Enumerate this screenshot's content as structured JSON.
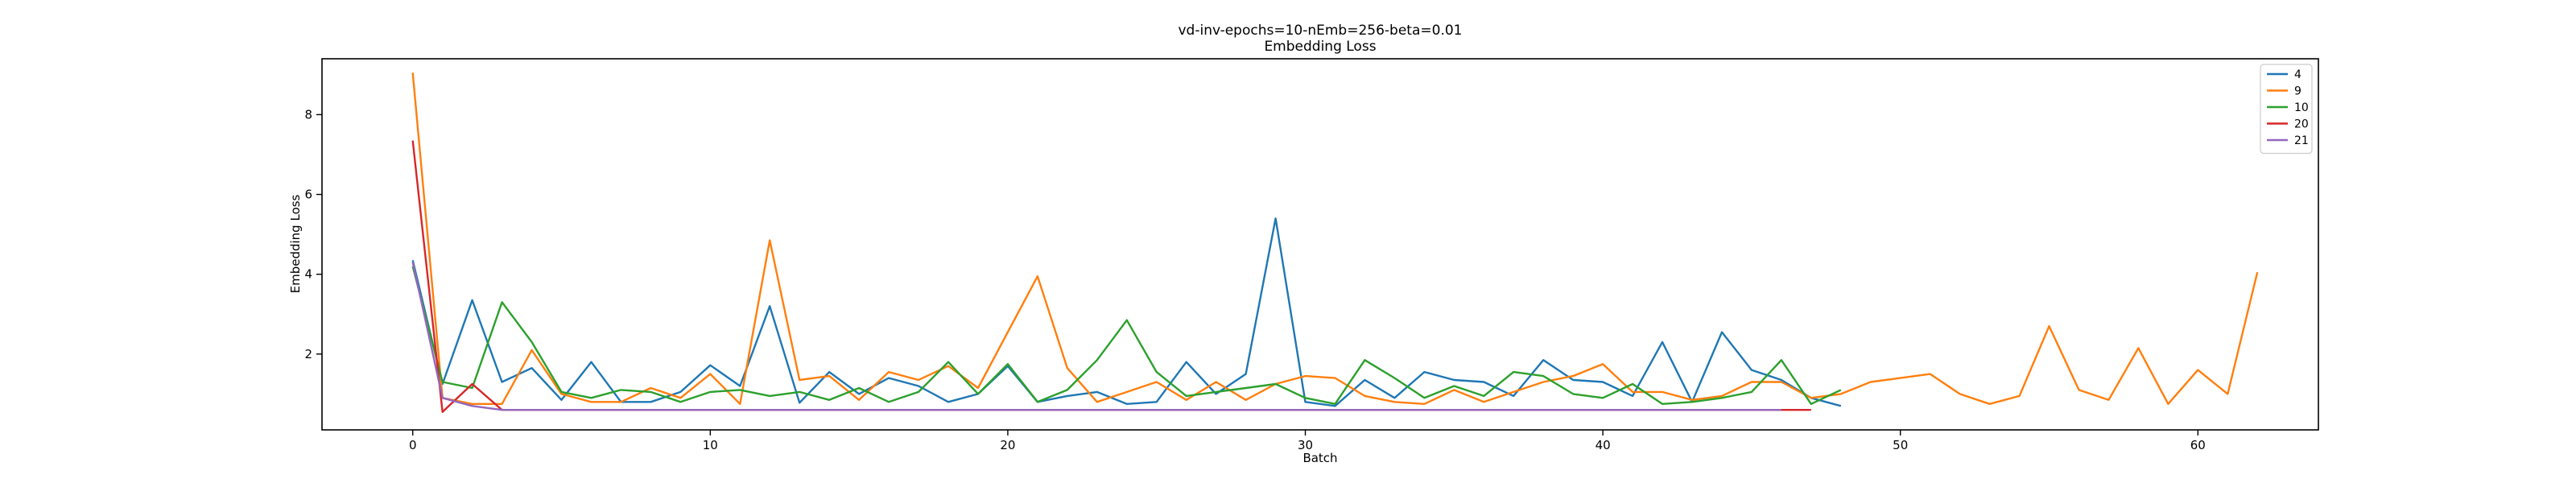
{
  "chart_data": {
    "type": "line",
    "title": "vd-inv-epochs=10-nEmb=256-beta=0.01",
    "subtitle": "Embedding Loss",
    "xlabel": "Batch",
    "ylabel": "Embedding Loss",
    "xlim": [
      -3.05,
      64.05
    ],
    "ylim": [
      0.1,
      9.4
    ],
    "xticks": [
      0,
      10,
      20,
      30,
      40,
      50,
      60
    ],
    "yticks": [
      2,
      4,
      6,
      8
    ],
    "grid": false,
    "legend_position": "top-right",
    "series": [
      {
        "name": "4",
        "color": "#1f77b4",
        "values": [
          4.35,
          1.25,
          3.35,
          1.3,
          1.65,
          0.85,
          1.8,
          0.8,
          0.8,
          1.05,
          1.72,
          1.2,
          3.2,
          0.78,
          1.55,
          1.0,
          1.4,
          1.2,
          0.8,
          1.0,
          1.7,
          0.8,
          0.95,
          1.05,
          0.75,
          0.8,
          1.8,
          1.0,
          1.5,
          5.4,
          0.8,
          0.7,
          1.35,
          0.9,
          1.55,
          1.35,
          1.3,
          0.95,
          1.85,
          1.35,
          1.3,
          0.95,
          2.3,
          0.8,
          2.55,
          1.6,
          1.35,
          0.9,
          0.7
        ]
      },
      {
        "name": "9",
        "color": "#ff7f0e",
        "values": [
          9.05,
          0.9,
          0.75,
          0.75,
          2.1,
          1.0,
          0.8,
          0.8,
          1.15,
          0.9,
          1.5,
          0.75,
          4.85,
          1.35,
          1.45,
          0.85,
          1.55,
          1.35,
          1.7,
          1.15,
          2.55,
          3.95,
          1.65,
          0.8,
          1.05,
          1.3,
          0.85,
          1.3,
          0.85,
          1.25,
          1.45,
          1.4,
          0.95,
          0.8,
          0.75,
          1.1,
          0.8,
          1.05,
          1.3,
          1.45,
          1.75,
          1.05,
          1.05,
          0.85,
          0.95,
          1.3,
          1.3,
          0.9,
          1.0,
          1.3,
          1.4,
          1.5,
          1.0,
          0.75,
          0.95,
          2.7,
          1.1,
          0.85,
          2.15,
          0.75,
          1.6,
          1.0,
          4.05
        ]
      },
      {
        "name": "10",
        "color": "#2ca02c",
        "values": [
          4.2,
          1.3,
          1.15,
          3.3,
          2.3,
          1.05,
          0.9,
          1.1,
          1.05,
          0.8,
          1.05,
          1.1,
          0.95,
          1.05,
          0.85,
          1.15,
          0.8,
          1.05,
          1.8,
          1.0,
          1.75,
          0.8,
          1.1,
          1.85,
          2.85,
          1.55,
          0.95,
          1.05,
          1.15,
          1.25,
          0.9,
          0.75,
          1.85,
          1.4,
          0.9,
          1.2,
          0.95,
          1.55,
          1.45,
          1.0,
          0.9,
          1.25,
          0.75,
          0.8,
          0.9,
          1.05,
          1.85,
          0.75,
          1.1
        ]
      },
      {
        "name": "20",
        "color": "#d62728",
        "values": [
          7.35,
          0.55,
          1.25,
          0.6,
          0.6,
          0.6,
          0.6,
          0.6,
          0.6,
          0.6,
          0.6,
          0.6,
          0.6,
          0.6,
          0.6,
          0.6,
          0.6,
          0.6,
          0.6,
          0.6,
          0.6,
          0.6,
          0.6,
          0.6,
          0.6,
          0.6,
          0.6,
          0.6,
          0.6,
          0.6,
          0.6,
          0.6,
          0.6,
          0.6,
          0.6,
          0.6,
          0.6,
          0.6,
          0.6,
          0.6,
          0.6,
          0.6,
          0.6,
          0.6,
          0.6,
          0.6,
          0.6,
          0.6
        ]
      },
      {
        "name": "21",
        "color": "#9467bd",
        "values": [
          4.3,
          0.9,
          0.7,
          0.6,
          0.6,
          0.6,
          0.6,
          0.6,
          0.6,
          0.6,
          0.6,
          0.6,
          0.6,
          0.6,
          0.6,
          0.6,
          0.6,
          0.6,
          0.6,
          0.6,
          0.6,
          0.6,
          0.6,
          0.6,
          0.6,
          0.6,
          0.6,
          0.6,
          0.6,
          0.6,
          0.6,
          0.6,
          0.6,
          0.6,
          0.6,
          0.6,
          0.6,
          0.6,
          0.6,
          0.6,
          0.6,
          0.6,
          0.6,
          0.6,
          0.6,
          0.6,
          0.6
        ]
      }
    ]
  }
}
